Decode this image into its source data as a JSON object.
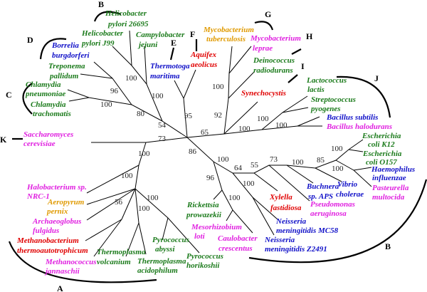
{
  "colors": {
    "green": "#1a7a1a",
    "blue": "#1010c8",
    "magenta": "#e020e0",
    "red": "#e00000",
    "orange": "#e09a00"
  },
  "taxa": [
    {
      "lines": [
        "Helicobacter",
        "pylori 26695"
      ],
      "color": "green"
    },
    {
      "lines": [
        "Helicobacter",
        "pylori J99"
      ],
      "color": "green"
    },
    {
      "lines": [
        "Campylobacter",
        "jejuni"
      ],
      "color": "green"
    },
    {
      "lines": [
        "Borrelia",
        "burgdorferi"
      ],
      "color": "blue"
    },
    {
      "lines": [
        "Treponema",
        "pallidum"
      ],
      "color": "green"
    },
    {
      "lines": [
        "Chlamydia",
        "pneumoniae"
      ],
      "color": "green"
    },
    {
      "lines": [
        "Chlamydia",
        "trachomatis"
      ],
      "color": "green"
    },
    {
      "lines": [
        "Thermotoga",
        "maritima"
      ],
      "color": "blue"
    },
    {
      "lines": [
        "Aquifex",
        "aeolicus"
      ],
      "color": "red"
    },
    {
      "lines": [
        "Mycobacterium",
        "tuberculosis"
      ],
      "color": "orange"
    },
    {
      "lines": [
        "Mycobacterium",
        "leprae"
      ],
      "color": "magenta"
    },
    {
      "lines": [
        "Deinococcus",
        "radiodurans"
      ],
      "color": "green"
    },
    {
      "lines": [
        "Synechocystis"
      ],
      "color": "red"
    },
    {
      "lines": [
        "Lactococcus",
        "lactis"
      ],
      "color": "green"
    },
    {
      "lines": [
        "Streptococcus",
        "pyogenes"
      ],
      "color": "green"
    },
    {
      "lines": [
        "Bacillus subtilis"
      ],
      "color": "blue"
    },
    {
      "lines": [
        "Bacillus halodurans"
      ],
      "color": "magenta"
    },
    {
      "lines": [
        "Escherichia",
        "coli K12"
      ],
      "color": "green"
    },
    {
      "lines": [
        "Escherichia",
        "coli O157"
      ],
      "color": "green"
    },
    {
      "lines": [
        "Haemophilus",
        "influenzae"
      ],
      "color": "blue"
    },
    {
      "lines": [
        "Pasteurella",
        "multocida"
      ],
      "color": "magenta"
    },
    {
      "lines": [
        "Vibrio",
        "cholerae"
      ],
      "color": "blue"
    },
    {
      "lines": [
        "Buchnera",
        "sp. APS"
      ],
      "color": "blue"
    },
    {
      "lines": [
        "Pseudomonas",
        "aeruginosa"
      ],
      "color": "magenta"
    },
    {
      "lines": [
        "Xylella",
        "fastidiosa"
      ],
      "color": "red"
    },
    {
      "lines": [
        "Neisseria",
        "meningitidis MC58"
      ],
      "color": "blue"
    },
    {
      "lines": [
        "Neisseria",
        "meningitidis Z2491"
      ],
      "color": "blue"
    },
    {
      "lines": [
        "Caulobacter",
        "crescentus"
      ],
      "color": "magenta"
    },
    {
      "lines": [
        "Mesorhizobium",
        "loti"
      ],
      "color": "magenta"
    },
    {
      "lines": [
        "Rickettsia",
        "prowazekii"
      ],
      "color": "green"
    },
    {
      "lines": [
        "Pyrococcus",
        "horikoshii"
      ],
      "color": "green"
    },
    {
      "lines": [
        "Pyrococcus",
        "abyssi"
      ],
      "color": "green"
    },
    {
      "lines": [
        "Thermoplasma",
        "acidophilum"
      ],
      "color": "green"
    },
    {
      "lines": [
        "Thermoplasma",
        "volcanium"
      ],
      "color": "green"
    },
    {
      "lines": [
        "Methanococcus",
        "jannaschii"
      ],
      "color": "magenta"
    },
    {
      "lines": [
        "Methanobacterium",
        "thermoautotrophicum"
      ],
      "color": "red"
    },
    {
      "lines": [
        "Archaeoglobus",
        "fulgidus"
      ],
      "color": "magenta"
    },
    {
      "lines": [
        "Aeropyrum",
        "pernix"
      ],
      "color": "orange"
    },
    {
      "lines": [
        "Halobacterium sp.",
        "NRC-1"
      ],
      "color": "magenta"
    },
    {
      "lines": [
        "Saccharomyces",
        "cerevisiae"
      ],
      "color": "magenta"
    }
  ],
  "bootstrap": [
    "100",
    "100",
    "96",
    "100",
    "80",
    "54",
    "95",
    "73",
    "65",
    "100",
    "92",
    "100",
    "100",
    "100",
    "86",
    "100",
    "64",
    "55",
    "73",
    "100",
    "85",
    "100",
    "100",
    "96",
    "100",
    "100",
    "100",
    "100",
    "56",
    "100",
    "100"
  ],
  "clades": [
    "A",
    "B",
    "B",
    "C",
    "D",
    "E",
    "F",
    "G",
    "H",
    "I",
    "J",
    "K"
  ]
}
